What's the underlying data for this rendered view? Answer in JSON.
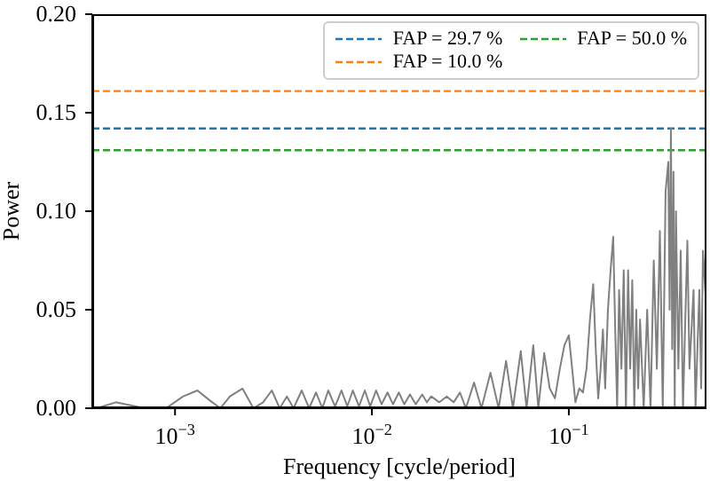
{
  "chart_data": {
    "type": "line",
    "xlabel": "Frequency [cycle/period]",
    "ylabel": "Power",
    "log": "x",
    "legend": "top right",
    "marker": "none",
    "line_style": "solid",
    "xlim": [
      0.00038,
      0.5
    ],
    "xticks": [
      {
        "value": 0.001,
        "label": "10$^{−3}$"
      },
      {
        "value": 0.01,
        "label": "10$^{−2}$"
      },
      {
        "value": 0.1,
        "label": "10$^{−1}$"
      }
    ],
    "ylim": [
      0,
      0.2
    ],
    "yticks": [
      {
        "value": 0,
        "label": "0.00"
      },
      {
        "value": 0.05,
        "label": "0.05"
      },
      {
        "value": 0.1,
        "label": "0.10"
      },
      {
        "value": 0.15,
        "label": "0.15"
      },
      {
        "value": 0.2,
        "label": "0.20"
      }
    ],
    "series": [
      {
        "color": "#808080",
        "x": [
          0.0004,
          0.0005,
          0.0007,
          0.0009,
          0.0011,
          0.0013,
          0.0015,
          0.0017,
          0.0019,
          0.0022,
          0.0025,
          0.0028,
          0.0031,
          0.0034,
          0.0037,
          0.004,
          0.0044,
          0.0048,
          0.0052,
          0.0056,
          0.006,
          0.0065,
          0.007,
          0.0075,
          0.008,
          0.0086,
          0.0092,
          0.0098,
          0.0105,
          0.0112,
          0.012,
          0.0128,
          0.0137,
          0.0146,
          0.0156,
          0.0167,
          0.018,
          0.019,
          0.02,
          0.022,
          0.024,
          0.026,
          0.028,
          0.03,
          0.033,
          0.036,
          0.04,
          0.044,
          0.048,
          0.052,
          0.057,
          0.061,
          0.066,
          0.07,
          0.075,
          0.08,
          0.085,
          0.09,
          0.095,
          0.1,
          0.104,
          0.108,
          0.113,
          0.118,
          0.123,
          0.128,
          0.133,
          0.137,
          0.141,
          0.145,
          0.149,
          0.153,
          0.158,
          0.163,
          0.168,
          0.172,
          0.176,
          0.18,
          0.185,
          0.19,
          0.195,
          0.2,
          0.205,
          0.21,
          0.215,
          0.22,
          0.225,
          0.23,
          0.24,
          0.25,
          0.26,
          0.27,
          0.28,
          0.29,
          0.3,
          0.31,
          0.32,
          0.325,
          0.33,
          0.335,
          0.34,
          0.345,
          0.35,
          0.36,
          0.37,
          0.38,
          0.4,
          0.41,
          0.43,
          0.44,
          0.46,
          0.47,
          0.48,
          0.5
        ],
        "values": [
          0,
          0.003,
          0,
          0,
          0.006,
          0.009,
          0.004,
          0,
          0.006,
          0.01,
          0,
          0.003,
          0.009,
          0,
          0.006,
          0,
          0.009,
          0,
          0.008,
          0,
          0.009,
          0.001,
          0.009,
          0.001,
          0.009,
          0.001,
          0.009,
          0.001,
          0.009,
          0.002,
          0.008,
          0.002,
          0.008,
          0.002,
          0.007,
          0.002,
          0.007,
          0.003,
          0.006,
          0.003,
          0.006,
          0.003,
          0.008,
          0,
          0.013,
          0,
          0.018,
          0,
          0.024,
          0,
          0.029,
          0,
          0.032,
          0,
          0.028,
          0.01,
          0.005,
          0.02,
          0.032,
          0.037,
          0.02,
          0.003,
          0.01,
          0.008,
          0.02,
          0.045,
          0.063,
          0.03,
          0.005,
          0.02,
          0.04,
          0.01,
          0.05,
          0.07,
          0.087,
          0.04,
          0,
          0.06,
          0.02,
          0.07,
          0,
          0.07,
          0.02,
          0.065,
          0,
          0.05,
          0.01,
          0.045,
          0,
          0.05,
          0,
          0.075,
          0.02,
          0.09,
          0,
          0.11,
          0.125,
          0.05,
          0.142,
          0.03,
          0.12,
          0,
          0.1,
          0.02,
          0.08,
          0,
          0.085,
          0.02,
          0.06,
          0,
          0.06,
          0.01,
          0.08,
          0.05
        ]
      },
      {
        "name": "FAP = 29.7 %",
        "color": "#1f77b4",
        "line_style": "dashed",
        "x": [
          0.00038,
          0.5
        ],
        "values": [
          0.142,
          0.142
        ]
      },
      {
        "name": "FAP = 10.0 %",
        "color": "#ff7f0e",
        "line_style": "dashed",
        "x": [
          0.00038,
          0.5
        ],
        "values": [
          0.161,
          0.161
        ]
      },
      {
        "name": "FAP = 50.0 %",
        "color": "#2ca02c",
        "line_style": "dashed",
        "x": [
          0.00038,
          0.5
        ],
        "values": [
          0.131,
          0.131
        ]
      }
    ]
  }
}
